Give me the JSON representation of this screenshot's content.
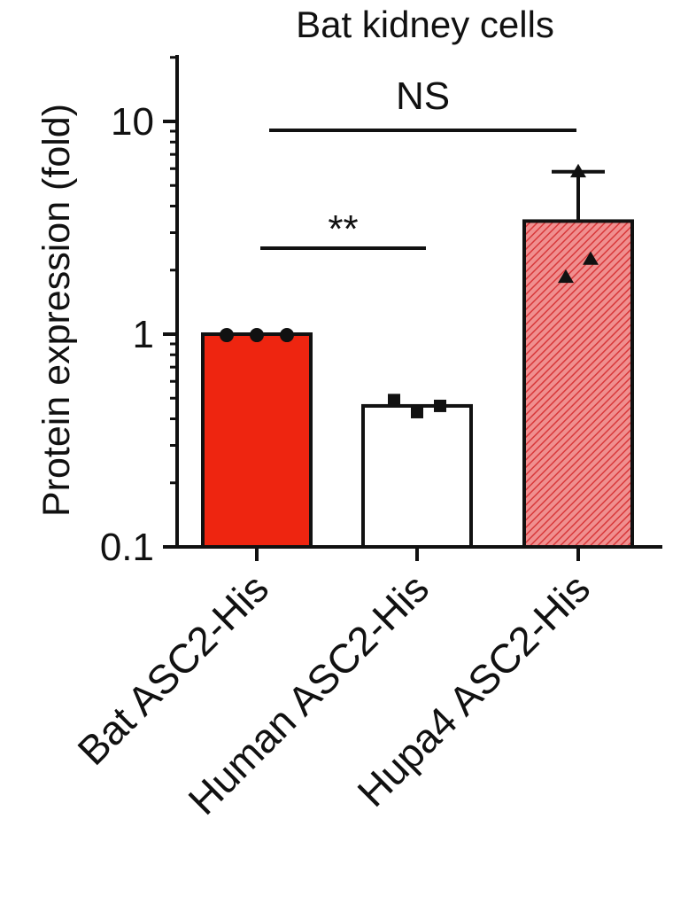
{
  "chart_data": {
    "type": "bar",
    "title": "Bat kidney cells",
    "xlabel": "",
    "ylabel": "Protein expression (fold)",
    "yscale": "log",
    "ylim": [
      0.1,
      20
    ],
    "yticks": [
      0.1,
      1,
      10
    ],
    "ytick_labels": [
      "0.1",
      "1",
      "10"
    ],
    "categories": [
      "Bat ASC2-His",
      "Human ASC2-His",
      "Hupa4 ASC2-His"
    ],
    "values": [
      1.0,
      0.46,
      3.4
    ],
    "error_upper": [
      null,
      null,
      5.8
    ],
    "colors": [
      "#ee2510",
      "#ffffff",
      "#e45a5a"
    ],
    "fill_patterns": [
      "solid",
      "solid",
      "hatched"
    ],
    "point_markers": [
      "circle",
      "square",
      "triangle"
    ],
    "points": [
      [
        0.99,
        0.99,
        0.99
      ],
      [
        0.49,
        0.43,
        0.46
      ],
      [
        5.8,
        2.25,
        1.85
      ]
    ],
    "annotations": [
      {
        "label": "NS",
        "from": "Bat ASC2-His",
        "to": "Hupa4 ASC2-His"
      },
      {
        "label": "**",
        "from": "Bat ASC2-His",
        "to": "Human ASC2-His"
      }
    ],
    "grid": false,
    "legend": "none"
  }
}
